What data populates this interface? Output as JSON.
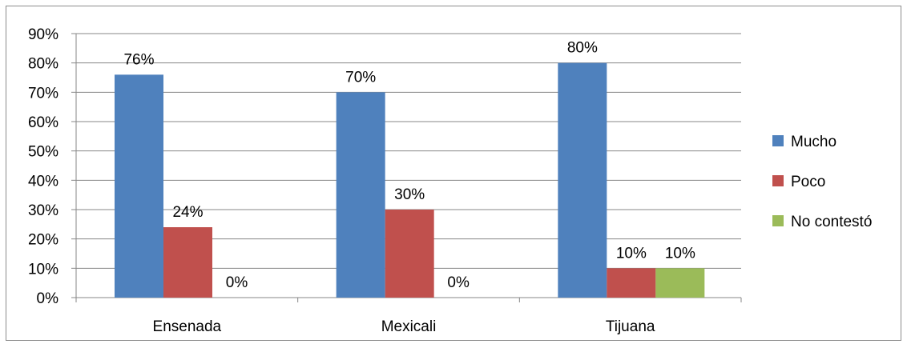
{
  "chart_data": {
    "type": "bar",
    "categories": [
      "Ensenada",
      "Mexicali",
      "Tijuana"
    ],
    "series": [
      {
        "name": "Mucho",
        "values": [
          76,
          70,
          80
        ],
        "labels": [
          "76%",
          "70%",
          "80%"
        ],
        "color": "#4f81bd"
      },
      {
        "name": "Poco",
        "values": [
          24,
          30,
          10
        ],
        "labels": [
          "24%",
          "30%",
          "10%"
        ],
        "color": "#c0504d"
      },
      {
        "name": "No contestó",
        "values": [
          0,
          0,
          10
        ],
        "labels": [
          "0%",
          "0%",
          "10%"
        ],
        "color": "#9bbb59"
      }
    ],
    "ylim": [
      0,
      90
    ],
    "yticks": [
      0,
      10,
      20,
      30,
      40,
      50,
      60,
      70,
      80,
      90
    ],
    "ytick_labels": [
      "0%",
      "10%",
      "20%",
      "30%",
      "40%",
      "50%",
      "60%",
      "70%",
      "80%",
      "90%"
    ],
    "title": "",
    "xlabel": "",
    "ylabel": "",
    "grid": true,
    "legend_position": "right"
  }
}
